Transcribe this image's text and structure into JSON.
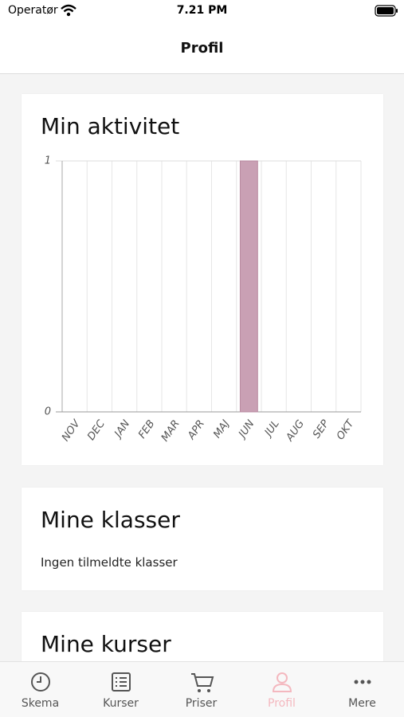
{
  "status_bar": {
    "carrier": "Operatør",
    "time": "7.21 PM"
  },
  "header": {
    "title": "Profil"
  },
  "chart_data": {
    "type": "bar",
    "title": "Min aktivitet",
    "categories": [
      "NOV",
      "DEC",
      "JAN",
      "FEB",
      "MAR",
      "APR",
      "MAJ",
      "JUN",
      "JUL",
      "AUG",
      "SEP",
      "OKT"
    ],
    "values": [
      0,
      0,
      0,
      0,
      0,
      0,
      0,
      1,
      0,
      0,
      0,
      0
    ],
    "color": "#c9a0b4",
    "ylim": [
      0,
      1
    ],
    "yticks": [
      0,
      1
    ],
    "grid": true
  },
  "cards": [
    {
      "title": "Mine klasser",
      "text": "Ingen tilmeldte klasser"
    },
    {
      "title": "Mine kurser"
    }
  ],
  "tab_bar": {
    "items": [
      "Skema",
      "Kurser",
      "Priser",
      "Profil",
      "Mere"
    ],
    "active": 3
  }
}
